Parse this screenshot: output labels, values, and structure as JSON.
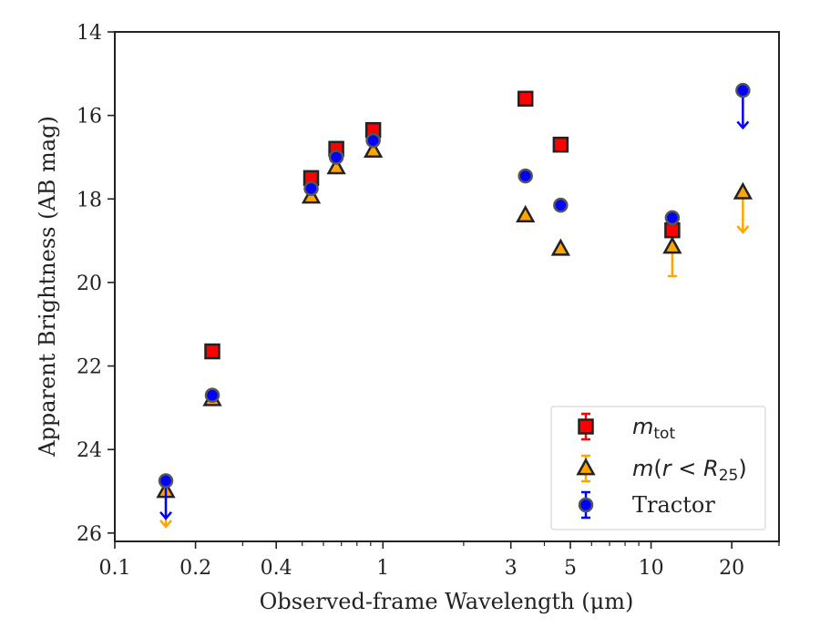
{
  "chart_data": {
    "type": "scatter",
    "title": "",
    "xlabel": "Observed-frame Wavelength (μm)",
    "ylabel": "Apparent Brightness (AB mag)",
    "xscale": "log",
    "xlim": [
      0.1,
      30
    ],
    "ylim": [
      26.2,
      14
    ],
    "y_inverted": true,
    "x_ticks": [
      0.1,
      0.2,
      0.4,
      1,
      3,
      5,
      10,
      20
    ],
    "x_tick_labels": [
      "0.1",
      "0.2",
      "0.4",
      "1",
      "3",
      "5",
      "10",
      "20"
    ],
    "y_ticks": [
      14,
      16,
      18,
      20,
      22,
      24,
      26
    ],
    "y_tick_labels": [
      "14",
      "16",
      "18",
      "20",
      "22",
      "24",
      "26"
    ],
    "legend_position": "lower right",
    "series": [
      {
        "name": "m_tot",
        "legend_parts": [
          "m",
          "tot"
        ],
        "marker": "square",
        "face_color": "#ff0000",
        "error_color": "#ff0000",
        "points": [
          {
            "x": 0.231,
            "y": 21.65
          },
          {
            "x": 0.54,
            "y": 17.5
          },
          {
            "x": 0.67,
            "y": 16.8
          },
          {
            "x": 0.92,
            "y": 16.35
          },
          {
            "x": 3.4,
            "y": 15.6
          },
          {
            "x": 4.6,
            "y": 16.7
          },
          {
            "x": 12.0,
            "y": 18.75
          }
        ]
      },
      {
        "name": "m(r < R25)",
        "legend_parts": [
          "m(",
          "r",
          " < ",
          "R",
          "25",
          ")"
        ],
        "marker": "triangle",
        "face_color": "#ffa500",
        "error_color": "#ffa500",
        "points": [
          {
            "x": 0.155,
            "y": 25.0,
            "upper_limit_to": 25.85
          },
          {
            "x": 0.231,
            "y": 22.8
          },
          {
            "x": 0.54,
            "y": 17.95
          },
          {
            "x": 0.67,
            "y": 17.25
          },
          {
            "x": 0.92,
            "y": 16.85
          },
          {
            "x": 3.4,
            "y": 18.4
          },
          {
            "x": 4.6,
            "y": 19.2
          },
          {
            "x": 12.0,
            "y": 19.15,
            "err_low": 0.0,
            "err_high": 0.7
          },
          {
            "x": 22.0,
            "y": 17.85,
            "upper_limit_to": 18.8
          }
        ]
      },
      {
        "name": "Tractor",
        "marker": "circle",
        "face_color": "#0000ff",
        "error_color": "#0000ff",
        "points": [
          {
            "x": 0.155,
            "y": 24.75,
            "upper_limit_to": 25.65
          },
          {
            "x": 0.231,
            "y": 22.7
          },
          {
            "x": 0.54,
            "y": 17.75
          },
          {
            "x": 0.67,
            "y": 17.0
          },
          {
            "x": 0.92,
            "y": 16.6
          },
          {
            "x": 3.4,
            "y": 17.45
          },
          {
            "x": 4.6,
            "y": 18.15
          },
          {
            "x": 12.0,
            "y": 18.45
          },
          {
            "x": 22.0,
            "y": 15.4,
            "upper_limit_to": 16.3
          }
        ]
      }
    ]
  }
}
